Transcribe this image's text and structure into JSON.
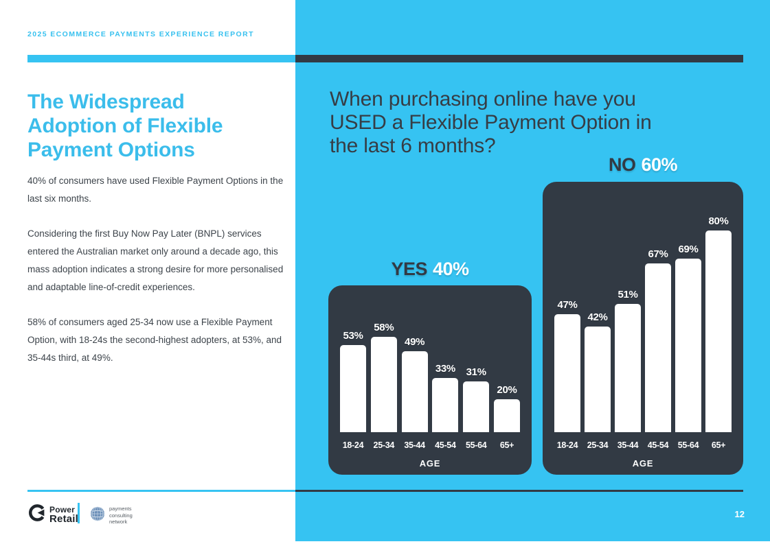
{
  "page": {
    "report_label": "2025 ECOMMERCE PAYMENTS EXPERIENCE REPORT",
    "page_number": "12"
  },
  "colors": {
    "brand_blue": "#36c3f2",
    "heading_blue": "#3bbdeb",
    "dark": "#323a44",
    "body_text": "#3c434a",
    "bar_white": "#ffffff"
  },
  "left_column": {
    "heading_lines": [
      "The Widespread",
      "Adoption of Flexible",
      "Payment Options"
    ],
    "paragraphs": [
      "40% of consumers have used Flexible Payment Options in the last six months.",
      "Considering the first Buy Now Pay Later (BNPL) services entered the Australian market only around a decade ago, this mass adoption indicates a strong desire for more personalised and adaptable line-of-credit experiences.",
      "58% of consumers aged 25-34 now use a Flexible Payment Option, with 18-24s the second-highest adopters, at 53%, and 35-44s third, at 49%."
    ]
  },
  "right_panel": {
    "question_lines": [
      "When purchasing online have you",
      "USED a Flexible Payment Option in",
      "the last 6 months?"
    ]
  },
  "chart_data": [
    {
      "type": "bar",
      "title": "YES 40%",
      "group_label": "YES",
      "group_value": "40%",
      "categories": [
        "18-24",
        "25-34",
        "35-44",
        "45-54",
        "55-64",
        "65+"
      ],
      "values": [
        53,
        58,
        49,
        33,
        31,
        20
      ],
      "unit": "%",
      "xlabel": "AGE",
      "ylim": [
        0,
        100
      ],
      "legend": "none",
      "grid": false,
      "bar_color": "#ffffff",
      "panel_color": "#323a44"
    },
    {
      "type": "bar",
      "title": "NO 60%",
      "group_label": "NO",
      "group_value": "60%",
      "categories": [
        "18-24",
        "25-34",
        "35-44",
        "45-54",
        "55-64",
        "65+"
      ],
      "values": [
        47,
        42,
        51,
        67,
        69,
        80
      ],
      "unit": "%",
      "xlabel": "AGE",
      "ylim": [
        0,
        100
      ],
      "legend": "none",
      "grid": false,
      "bar_color": "#ffffff",
      "panel_color": "#323a44"
    }
  ],
  "footer": {
    "power_retail_logo": {
      "icon": "circular-arrow-icon",
      "line1": "Power",
      "line2": "Retail"
    },
    "payments_consulting_network": {
      "icon": "globe-icon",
      "lines": [
        "payments",
        "consulting",
        "network"
      ]
    }
  }
}
